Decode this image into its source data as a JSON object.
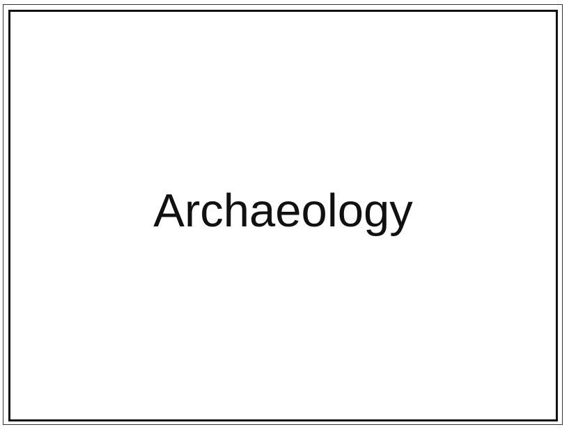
{
  "card": {
    "title": "Archaeology"
  }
}
